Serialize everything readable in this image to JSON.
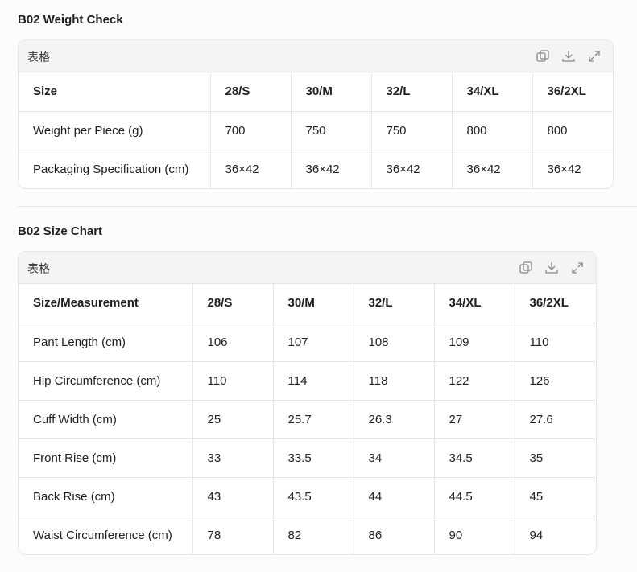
{
  "sections": [
    {
      "title": "B02 Weight Check",
      "table": {
        "label": "表格",
        "header": [
          "Size",
          "28/S",
          "30/M",
          "32/L",
          "34/XL",
          "36/2XL"
        ],
        "rows": [
          [
            "Weight per Piece (g)",
            "700",
            "750",
            "750",
            "800",
            "800"
          ],
          [
            "Packaging Specification (cm)",
            "36×42",
            "36×42",
            "36×42",
            "36×42",
            "36×42"
          ]
        ]
      }
    },
    {
      "title": "B02 Size Chart",
      "table": {
        "label": "表格",
        "header": [
          "Size/Measurement",
          "28/S",
          "30/M",
          "32/L",
          "34/XL",
          "36/2XL"
        ],
        "rows": [
          [
            "Pant Length (cm)",
            "106",
            "107",
            "108",
            "109",
            "110"
          ],
          [
            "Hip Circumference (cm)",
            "110",
            "114",
            "118",
            "122",
            "126"
          ],
          [
            "Cuff Width (cm)",
            "25",
            "25.7",
            "26.3",
            "27",
            "27.6"
          ],
          [
            "Front Rise (cm)",
            "33",
            "33.5",
            "34",
            "34.5",
            "35"
          ],
          [
            "Back Rise (cm)",
            "43",
            "43.5",
            "44",
            "44.5",
            "45"
          ],
          [
            "Waist Circumference (cm)",
            "78",
            "82",
            "86",
            "90",
            "94"
          ]
        ]
      }
    }
  ]
}
